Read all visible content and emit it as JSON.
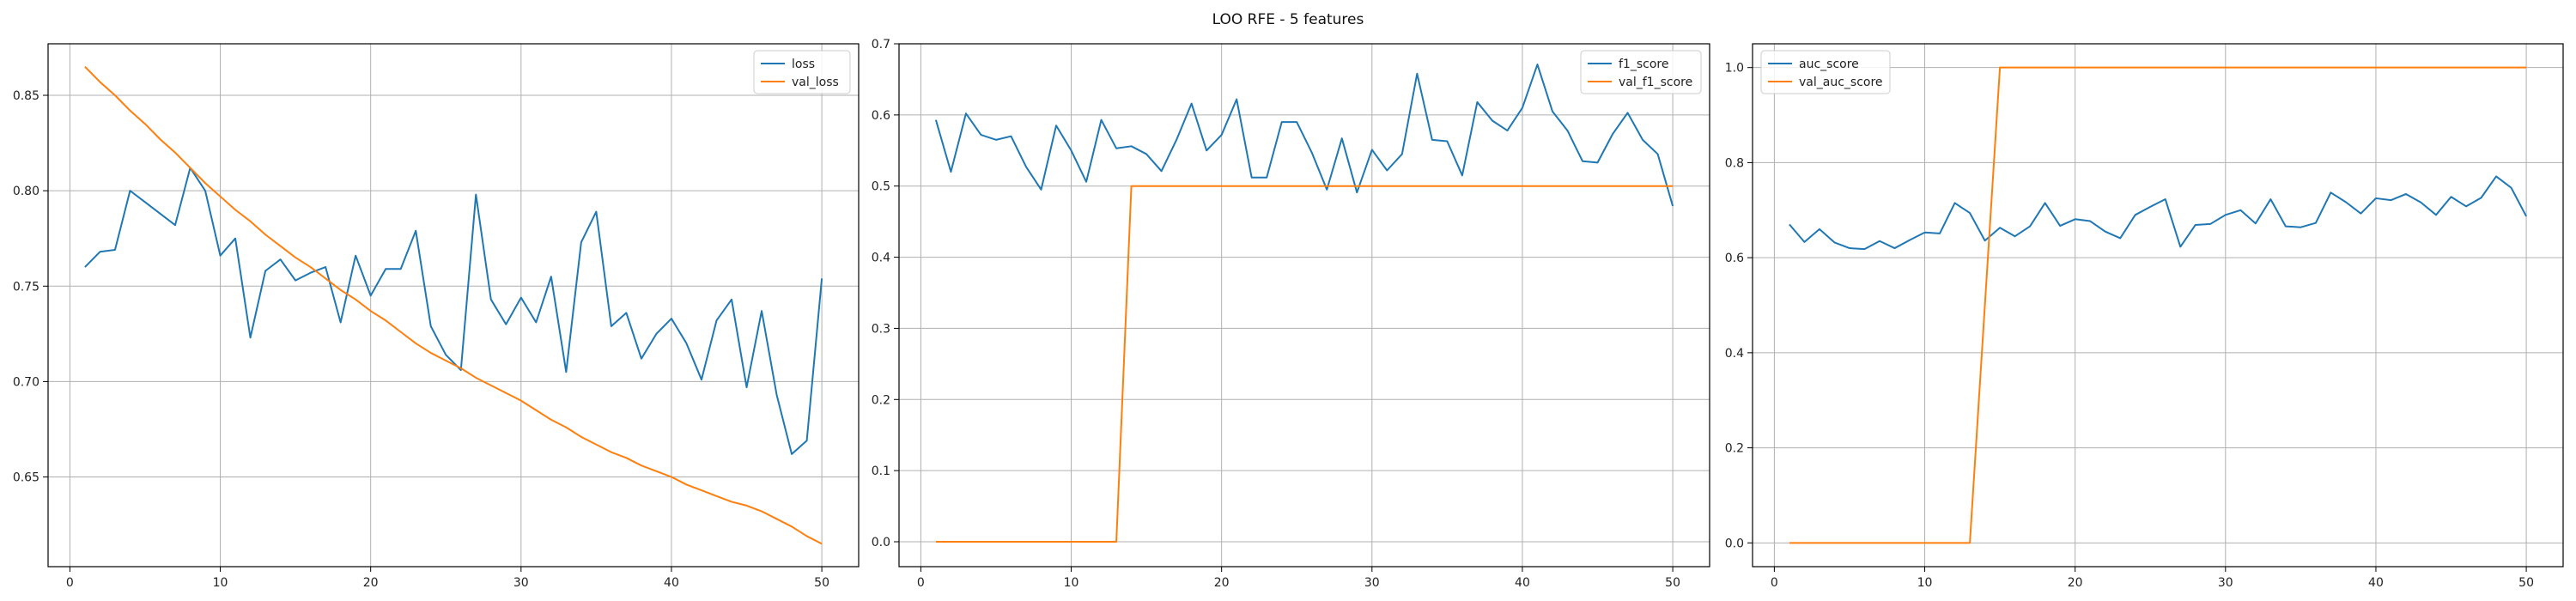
{
  "figure_title": "LOO RFE - 5 features",
  "chart_data": [
    {
      "type": "line",
      "title": "",
      "xlabel": "",
      "ylabel": "",
      "xlim": [
        -1.45,
        52.45
      ],
      "ylim": [
        0.603,
        0.877
      ],
      "xticks": [
        0,
        10,
        20,
        30,
        40,
        50
      ],
      "yticks": [
        0.65,
        0.7,
        0.75,
        0.8,
        0.85
      ],
      "ytick_format": 2,
      "grid": true,
      "legend": "upper right",
      "x": [
        1,
        2,
        3,
        4,
        5,
        6,
        7,
        8,
        9,
        10,
        11,
        12,
        13,
        14,
        15,
        16,
        17,
        18,
        19,
        20,
        21,
        22,
        23,
        24,
        25,
        26,
        27,
        28,
        29,
        30,
        31,
        32,
        33,
        34,
        35,
        36,
        37,
        38,
        39,
        40,
        41,
        42,
        43,
        44,
        45,
        46,
        47,
        48,
        49,
        50
      ],
      "series": [
        {
          "name": "loss",
          "color": "#1f77b4",
          "values": [
            0.76,
            0.768,
            0.769,
            0.8,
            0.794,
            0.788,
            0.782,
            0.812,
            0.8,
            0.766,
            0.775,
            0.723,
            0.758,
            0.764,
            0.753,
            0.757,
            0.76,
            0.731,
            0.766,
            0.745,
            0.759,
            0.759,
            0.779,
            0.729,
            0.714,
            0.706,
            0.798,
            0.743,
            0.73,
            0.744,
            0.731,
            0.755,
            0.705,
            0.773,
            0.789,
            0.729,
            0.736,
            0.712,
            0.725,
            0.733,
            0.72,
            0.701,
            0.732,
            0.743,
            0.697,
            0.737,
            0.693,
            0.662,
            0.669,
            0.754
          ]
        },
        {
          "name": "val_loss",
          "color": "#ff7f0e",
          "values": [
            0.865,
            0.857,
            0.85,
            0.842,
            0.835,
            0.827,
            0.82,
            0.812,
            0.804,
            0.797,
            0.79,
            0.784,
            0.777,
            0.771,
            0.765,
            0.76,
            0.754,
            0.748,
            0.743,
            0.737,
            0.732,
            0.726,
            0.72,
            0.715,
            0.711,
            0.707,
            0.702,
            0.698,
            0.694,
            0.69,
            0.685,
            0.68,
            0.676,
            0.671,
            0.667,
            0.663,
            0.66,
            0.656,
            0.653,
            0.65,
            0.646,
            0.643,
            0.64,
            0.637,
            0.635,
            0.632,
            0.628,
            0.624,
            0.619,
            0.615
          ]
        }
      ]
    },
    {
      "type": "line",
      "title": "",
      "xlabel": "",
      "ylabel": "",
      "xlim": [
        -1.45,
        52.45
      ],
      "ylim": [
        -0.035,
        0.7
      ],
      "xticks": [
        0,
        10,
        20,
        30,
        40,
        50
      ],
      "yticks": [
        0.0,
        0.1,
        0.2,
        0.3,
        0.4,
        0.5,
        0.6,
        0.7
      ],
      "ytick_format": 1,
      "grid": true,
      "legend": "upper right",
      "x": [
        1,
        2,
        3,
        4,
        5,
        6,
        7,
        8,
        9,
        10,
        11,
        12,
        13,
        14,
        15,
        16,
        17,
        18,
        19,
        20,
        21,
        22,
        23,
        24,
        25,
        26,
        27,
        28,
        29,
        30,
        31,
        32,
        33,
        34,
        35,
        36,
        37,
        38,
        39,
        40,
        41,
        42,
        43,
        44,
        45,
        46,
        47,
        48,
        49,
        50
      ],
      "series": [
        {
          "name": "f1_score",
          "color": "#1f77b4",
          "values": [
            0.593,
            0.52,
            0.602,
            0.572,
            0.565,
            0.57,
            0.527,
            0.495,
            0.585,
            0.55,
            0.506,
            0.593,
            0.553,
            0.556,
            0.545,
            0.521,
            0.565,
            0.616,
            0.55,
            0.572,
            0.622,
            0.512,
            0.512,
            0.59,
            0.59,
            0.547,
            0.495,
            0.567,
            0.491,
            0.551,
            0.522,
            0.545,
            0.658,
            0.565,
            0.563,
            0.515,
            0.618,
            0.592,
            0.578,
            0.61,
            0.671,
            0.605,
            0.578,
            0.535,
            0.533,
            0.573,
            0.603,
            0.565,
            0.545,
            0.472
          ]
        },
        {
          "name": "val_f1_score",
          "color": "#ff7f0e",
          "values": [
            0,
            0,
            0,
            0,
            0,
            0,
            0,
            0,
            0,
            0,
            0,
            0,
            0,
            0.5,
            0.5,
            0.5,
            0.5,
            0.5,
            0.5,
            0.5,
            0.5,
            0.5,
            0.5,
            0.5,
            0.5,
            0.5,
            0.5,
            0.5,
            0.5,
            0.5,
            0.5,
            0.5,
            0.5,
            0.5,
            0.5,
            0.5,
            0.5,
            0.5,
            0.5,
            0.5,
            0.5,
            0.5,
            0.5,
            0.5,
            0.5,
            0.5,
            0.5,
            0.5,
            0.5,
            0.5
          ]
        }
      ]
    },
    {
      "type": "line",
      "title": "",
      "xlabel": "",
      "ylabel": "",
      "xlim": [
        -1.45,
        52.45
      ],
      "ylim": [
        -0.05,
        1.05
      ],
      "xticks": [
        0,
        10,
        20,
        30,
        40,
        50
      ],
      "yticks": [
        0.0,
        0.2,
        0.4,
        0.6,
        0.8,
        1.0
      ],
      "ytick_format": 1,
      "grid": true,
      "legend": "upper left",
      "x": [
        1,
        2,
        3,
        4,
        5,
        6,
        7,
        8,
        9,
        10,
        11,
        12,
        13,
        14,
        15,
        16,
        17,
        18,
        19,
        20,
        21,
        22,
        23,
        24,
        25,
        26,
        27,
        28,
        29,
        30,
        31,
        32,
        33,
        34,
        35,
        36,
        37,
        38,
        39,
        40,
        41,
        42,
        43,
        44,
        45,
        46,
        47,
        48,
        49,
        50
      ],
      "series": [
        {
          "name": "auc_score",
          "color": "#1f77b4",
          "values": [
            0.67,
            0.633,
            0.66,
            0.632,
            0.62,
            0.618,
            0.635,
            0.62,
            0.637,
            0.653,
            0.651,
            0.715,
            0.694,
            0.636,
            0.663,
            0.645,
            0.666,
            0.715,
            0.667,
            0.681,
            0.677,
            0.655,
            0.641,
            0.69,
            0.707,
            0.723,
            0.623,
            0.669,
            0.671,
            0.69,
            0.7,
            0.672,
            0.723,
            0.666,
            0.664,
            0.673,
            0.737,
            0.717,
            0.693,
            0.725,
            0.721,
            0.734,
            0.716,
            0.69,
            0.728,
            0.708,
            0.726,
            0.771,
            0.747,
            0.687
          ]
        },
        {
          "name": "val_auc_score",
          "color": "#ff7f0e",
          "values": [
            0,
            0,
            0,
            0,
            0,
            0,
            0,
            0,
            0,
            0,
            0,
            0,
            0,
            0.5,
            1,
            1,
            1,
            1,
            1,
            1,
            1,
            1,
            1,
            1,
            1,
            1,
            1,
            1,
            1,
            1,
            1,
            1,
            1,
            1,
            1,
            1,
            1,
            1,
            1,
            1,
            1,
            1,
            1,
            1,
            1,
            1,
            1,
            1,
            1,
            1
          ]
        }
      ]
    }
  ]
}
